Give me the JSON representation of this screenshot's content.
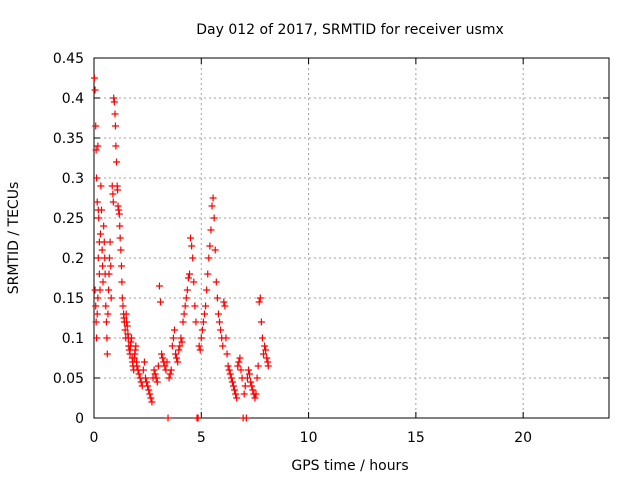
{
  "chart_data": {
    "type": "scatter",
    "title": "Day 012 of 2017, SRMTID for receiver usmx",
    "xlabel": "GPS time / hours",
    "ylabel": "SRMTID / TECUs",
    "xlim": [
      0,
      24
    ],
    "ylim": [
      0,
      0.45
    ],
    "x_ticks": [
      "0",
      "5",
      "10",
      "15",
      "20"
    ],
    "y_ticks": [
      "0",
      "0.05",
      "0.1",
      "0.15",
      "0.2",
      "0.25",
      "0.3",
      "0.35",
      "0.4",
      "0.45"
    ],
    "grid": true,
    "marker": "+",
    "series_color": "#ff0000",
    "points": [
      [
        0.02,
        0.425
      ],
      [
        0.05,
        0.41
      ],
      [
        0.08,
        0.365
      ],
      [
        0.1,
        0.335
      ],
      [
        0.12,
        0.3
      ],
      [
        0.15,
        0.27
      ],
      [
        0.18,
        0.34
      ],
      [
        0.2,
        0.26
      ],
      [
        0.22,
        0.25
      ],
      [
        0.25,
        0.22
      ],
      [
        0.05,
        0.16
      ],
      [
        0.08,
        0.14
      ],
      [
        0.1,
        0.12
      ],
      [
        0.12,
        0.1
      ],
      [
        0.15,
        0.13
      ],
      [
        0.18,
        0.15
      ],
      [
        0.2,
        0.2
      ],
      [
        0.25,
        0.18
      ],
      [
        0.28,
        0.16
      ],
      [
        0.3,
        0.23
      ],
      [
        0.32,
        0.29
      ],
      [
        0.35,
        0.26
      ],
      [
        0.38,
        0.21
      ],
      [
        0.4,
        0.19
      ],
      [
        0.42,
        0.17
      ],
      [
        0.45,
        0.24
      ],
      [
        0.48,
        0.22
      ],
      [
        0.5,
        0.2
      ],
      [
        0.52,
        0.18
      ],
      [
        0.55,
        0.14
      ],
      [
        0.58,
        0.12
      ],
      [
        0.6,
        0.1
      ],
      [
        0.62,
        0.08
      ],
      [
        0.65,
        0.13
      ],
      [
        0.68,
        0.16
      ],
      [
        0.7,
        0.18
      ],
      [
        0.72,
        0.2
      ],
      [
        0.75,
        0.22
      ],
      [
        0.78,
        0.19
      ],
      [
        0.8,
        0.15
      ],
      [
        0.85,
        0.29
      ],
      [
        0.88,
        0.28
      ],
      [
        0.9,
        0.27
      ],
      [
        0.92,
        0.4
      ],
      [
        0.95,
        0.395
      ],
      [
        0.98,
        0.38
      ],
      [
        1.0,
        0.365
      ],
      [
        1.02,
        0.34
      ],
      [
        1.05,
        0.32
      ],
      [
        1.08,
        0.29
      ],
      [
        1.1,
        0.285
      ],
      [
        1.12,
        0.265
      ],
      [
        1.15,
        0.26
      ],
      [
        1.18,
        0.255
      ],
      [
        1.2,
        0.24
      ],
      [
        1.22,
        0.225
      ],
      [
        1.25,
        0.21
      ],
      [
        1.28,
        0.19
      ],
      [
        1.3,
        0.17
      ],
      [
        1.32,
        0.15
      ],
      [
        1.35,
        0.14
      ],
      [
        1.38,
        0.13
      ],
      [
        1.4,
        0.125
      ],
      [
        1.42,
        0.12
      ],
      [
        1.45,
        0.11
      ],
      [
        1.48,
        0.1
      ],
      [
        1.5,
        0.13
      ],
      [
        1.52,
        0.12
      ],
      [
        1.55,
        0.115
      ],
      [
        1.58,
        0.105
      ],
      [
        1.6,
        0.1
      ],
      [
        1.62,
        0.09
      ],
      [
        1.65,
        0.085
      ],
      [
        1.68,
        0.08
      ],
      [
        1.7,
        0.09
      ],
      [
        1.72,
        0.095
      ],
      [
        1.75,
        0.1
      ],
      [
        1.78,
        0.075
      ],
      [
        1.8,
        0.07
      ],
      [
        1.82,
        0.065
      ],
      [
        1.85,
        0.06
      ],
      [
        1.88,
        0.075
      ],
      [
        1.9,
        0.08
      ],
      [
        1.92,
        0.085
      ],
      [
        1.95,
        0.09
      ],
      [
        1.98,
        0.07
      ],
      [
        2.0,
        0.065
      ],
      [
        2.05,
        0.06
      ],
      [
        2.1,
        0.055
      ],
      [
        2.15,
        0.05
      ],
      [
        2.2,
        0.045
      ],
      [
        2.25,
        0.04
      ],
      [
        2.3,
        0.06
      ],
      [
        2.35,
        0.07
      ],
      [
        2.4,
        0.05
      ],
      [
        2.45,
        0.045
      ],
      [
        2.5,
        0.04
      ],
      [
        2.55,
        0.035
      ],
      [
        2.6,
        0.03
      ],
      [
        2.65,
        0.025
      ],
      [
        2.7,
        0.02
      ],
      [
        2.75,
        0.05
      ],
      [
        2.8,
        0.06
      ],
      [
        2.85,
        0.055
      ],
      [
        2.9,
        0.05
      ],
      [
        2.95,
        0.045
      ],
      [
        3.0,
        0.065
      ],
      [
        3.05,
        0.165
      ],
      [
        3.1,
        0.145
      ],
      [
        3.15,
        0.08
      ],
      [
        3.2,
        0.075
      ],
      [
        3.25,
        0.07
      ],
      [
        3.3,
        0.065
      ],
      [
        3.35,
        0.06
      ],
      [
        3.4,
        0.07
      ],
      [
        3.45,
        0.0
      ],
      [
        3.5,
        0.05
      ],
      [
        3.55,
        0.055
      ],
      [
        3.6,
        0.06
      ],
      [
        3.65,
        0.09
      ],
      [
        3.7,
        0.1
      ],
      [
        3.75,
        0.11
      ],
      [
        3.8,
        0.08
      ],
      [
        3.85,
        0.075
      ],
      [
        3.9,
        0.07
      ],
      [
        3.95,
        0.085
      ],
      [
        4.0,
        0.09
      ],
      [
        4.05,
        0.1
      ],
      [
        4.1,
        0.095
      ],
      [
        4.15,
        0.12
      ],
      [
        4.2,
        0.13
      ],
      [
        4.25,
        0.14
      ],
      [
        4.3,
        0.15
      ],
      [
        4.35,
        0.16
      ],
      [
        4.4,
        0.175
      ],
      [
        4.45,
        0.18
      ],
      [
        4.5,
        0.225
      ],
      [
        4.55,
        0.215
      ],
      [
        4.6,
        0.2
      ],
      [
        4.65,
        0.17
      ],
      [
        4.7,
        0.14
      ],
      [
        4.75,
        0.12
      ],
      [
        4.8,
        0.0
      ],
      [
        4.85,
        0.0
      ],
      [
        4.9,
        0.09
      ],
      [
        4.95,
        0.085
      ],
      [
        5.0,
        0.1
      ],
      [
        5.05,
        0.11
      ],
      [
        5.1,
        0.12
      ],
      [
        5.15,
        0.13
      ],
      [
        5.2,
        0.14
      ],
      [
        5.25,
        0.16
      ],
      [
        5.3,
        0.18
      ],
      [
        5.35,
        0.2
      ],
      [
        5.4,
        0.215
      ],
      [
        5.45,
        0.235
      ],
      [
        5.5,
        0.265
      ],
      [
        5.55,
        0.275
      ],
      [
        5.6,
        0.25
      ],
      [
        5.65,
        0.21
      ],
      [
        5.7,
        0.17
      ],
      [
        5.75,
        0.15
      ],
      [
        5.8,
        0.13
      ],
      [
        5.85,
        0.12
      ],
      [
        5.9,
        0.11
      ],
      [
        5.95,
        0.1
      ],
      [
        6.0,
        0.09
      ],
      [
        6.05,
        0.145
      ],
      [
        6.1,
        0.14
      ],
      [
        6.15,
        0.1
      ],
      [
        6.2,
        0.08
      ],
      [
        6.25,
        0.065
      ],
      [
        6.3,
        0.06
      ],
      [
        6.35,
        0.055
      ],
      [
        6.4,
        0.05
      ],
      [
        6.45,
        0.045
      ],
      [
        6.5,
        0.04
      ],
      [
        6.55,
        0.035
      ],
      [
        6.6,
        0.03
      ],
      [
        6.65,
        0.025
      ],
      [
        6.7,
        0.065
      ],
      [
        6.75,
        0.07
      ],
      [
        6.8,
        0.075
      ],
      [
        6.85,
        0.06
      ],
      [
        6.9,
        0.05
      ],
      [
        6.95,
        0.0
      ],
      [
        7.0,
        0.03
      ],
      [
        7.05,
        0.04
      ],
      [
        7.1,
        0.0
      ],
      [
        7.15,
        0.05
      ],
      [
        7.2,
        0.06
      ],
      [
        7.25,
        0.055
      ],
      [
        7.3,
        0.045
      ],
      [
        7.35,
        0.04
      ],
      [
        7.4,
        0.035
      ],
      [
        7.45,
        0.03
      ],
      [
        7.5,
        0.025
      ],
      [
        7.55,
        0.03
      ],
      [
        7.6,
        0.05
      ],
      [
        7.65,
        0.065
      ],
      [
        7.7,
        0.145
      ],
      [
        7.75,
        0.15
      ],
      [
        7.8,
        0.12
      ],
      [
        7.85,
        0.1
      ],
      [
        7.9,
        0.08
      ],
      [
        7.95,
        0.09
      ],
      [
        8.0,
        0.085
      ],
      [
        8.05,
        0.075
      ],
      [
        8.1,
        0.07
      ],
      [
        8.12,
        0.065
      ]
    ]
  }
}
